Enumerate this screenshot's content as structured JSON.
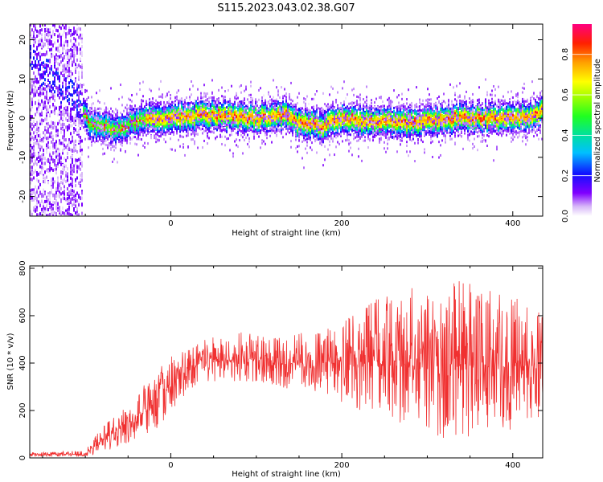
{
  "title": "S115.2023.043.02.38.G07",
  "chart_data": [
    {
      "type": "heatmap",
      "xlabel": "Height of straight line (km)",
      "ylabel": "Frequency (Hz)",
      "xlim": [
        -165,
        435
      ],
      "ylim": [
        -25,
        24
      ],
      "xticks": [
        0,
        200,
        400
      ],
      "yticks": [
        -20,
        -10,
        0,
        10,
        20
      ],
      "colorbar": {
        "label": "Normalized spectral amplitude",
        "range": [
          0,
          0.95
        ],
        "ticks": [
          "0.0",
          "0.2",
          "0.4",
          "0.6",
          "0.8"
        ]
      },
      "centerline": {
        "x": [
          -165,
          -145,
          -130,
          -115,
          -105,
          -95,
          -80,
          -60,
          -45,
          -30,
          0,
          40,
          80,
          110,
          130,
          150,
          180,
          200,
          240,
          280,
          320,
          360,
          400,
          420,
          435
        ],
        "freq": [
          15,
          12,
          8,
          6,
          3,
          -1,
          -2,
          -3,
          -1,
          0,
          0,
          1,
          0,
          0,
          1,
          -1,
          -2,
          0,
          -1,
          -1,
          0,
          0,
          0,
          0,
          2
        ]
      }
    },
    {
      "type": "line",
      "xlabel": "Height of straight line (km)",
      "ylabel": "SNR (10 * v/v)",
      "xlim": [
        -165,
        435
      ],
      "ylim": [
        0,
        810
      ],
      "xticks": [
        0,
        200,
        400
      ],
      "yticks": [
        0,
        200,
        400,
        600,
        800
      ],
      "series": [
        {
          "color": "#f03030",
          "envelope": {
            "x": [
              -165,
              -100,
              -80,
              -60,
              -40,
              -20,
              0,
              20,
              40,
              60,
              80,
              100,
              120,
              140,
              150,
              160,
              180,
              200,
              220,
              240,
              260,
              280,
              300,
              320,
              340,
              360,
              380,
              400,
              420,
              435
            ],
            "mean": [
              15,
              15,
              80,
              120,
              170,
              220,
              310,
              370,
              400,
              410,
              420,
              415,
              400,
              395,
              420,
              380,
              400,
              400,
              405,
              410,
              410,
              400,
              400,
              395,
              395,
              390,
              385,
              390,
              390,
              390
            ],
            "upper": [
              25,
              30,
              140,
              200,
              270,
              370,
              430,
              460,
              500,
              520,
              530,
              530,
              520,
              500,
              560,
              500,
              560,
              600,
              620,
              680,
              700,
              720,
              740,
              760,
              760,
              780,
              700,
              720,
              650,
              620
            ],
            "lower": [
              5,
              5,
              20,
              40,
              60,
              100,
              170,
              260,
              300,
              310,
              320,
              310,
              300,
              290,
              310,
              290,
              260,
              220,
              200,
              190,
              150,
              120,
              100,
              60,
              40,
              80,
              100,
              120,
              150,
              180
            ]
          }
        }
      ]
    }
  ]
}
